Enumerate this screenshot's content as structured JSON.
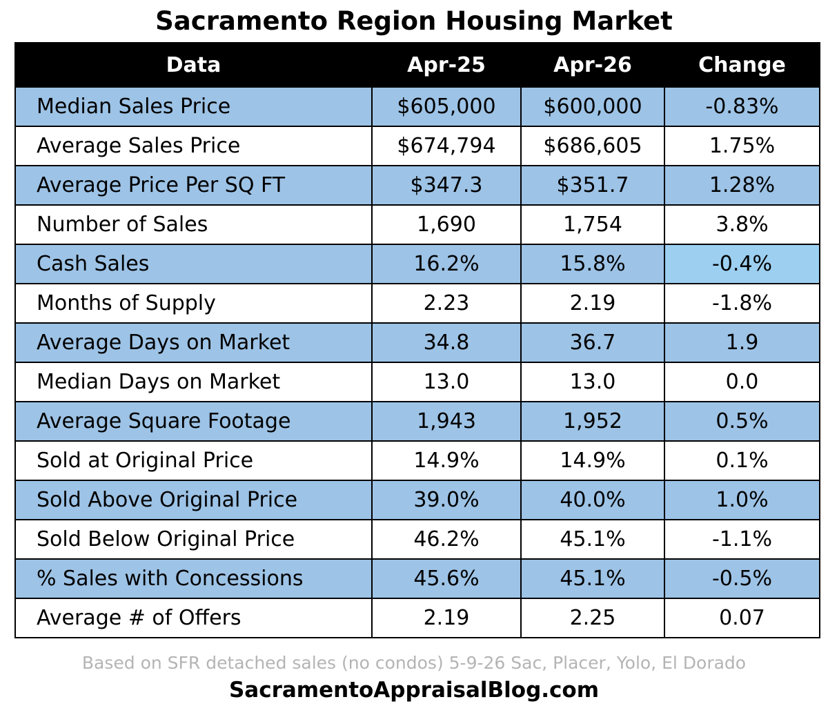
{
  "chart_data": {
    "type": "table",
    "title": "Sacramento Region Housing Market",
    "columns": [
      "Data",
      "Apr-25",
      "Apr-26",
      "Change"
    ],
    "rows": [
      [
        "Median Sales Price",
        "$605,000",
        "$600,000",
        "-0.83%"
      ],
      [
        "Average Sales Price",
        "$674,794",
        "$686,605",
        "1.75%"
      ],
      [
        "Average Price Per SQ FT",
        "$347.3",
        "$351.7",
        "1.28%"
      ],
      [
        "Number of Sales",
        "1,690",
        "1,754",
        "3.8%"
      ],
      [
        "Cash Sales",
        "16.2%",
        "15.8%",
        "-0.4%"
      ],
      [
        "Months of Supply",
        "2.23",
        "2.19",
        "-1.8%"
      ],
      [
        "Average Days on Market",
        "34.8",
        "36.7",
        "1.9"
      ],
      [
        "Median Days on Market",
        "13.0",
        "13.0",
        "0.0"
      ],
      [
        "Average Square Footage",
        "1,943",
        "1,952",
        "0.5%"
      ],
      [
        "Sold at Original Price",
        "14.9%",
        "14.9%",
        "0.1%"
      ],
      [
        "Sold Above Original Price",
        "39.0%",
        "40.0%",
        "1.0%"
      ],
      [
        "Sold Below Original Price",
        "46.2%",
        "45.1%",
        "-1.1%"
      ],
      [
        "% Sales with Concessions",
        "45.6%",
        "45.1%",
        "-0.5%"
      ],
      [
        "Average # of Offers",
        "2.19",
        "2.25",
        "0.07"
      ]
    ],
    "footnote": "Based on SFR detached sales (no condos) 5-9-26 Sac, Placer, Yolo, El Dorado",
    "source": "SacramentoAppraisalBlog.com"
  },
  "colors": {
    "header_background": "#000000",
    "header_text": "#ffffff",
    "band_row": "#9dc3e6",
    "band_highlight_cell": "#9ccff0",
    "plain_row": "#ffffff",
    "footnote_text": "#b4b4b4"
  }
}
